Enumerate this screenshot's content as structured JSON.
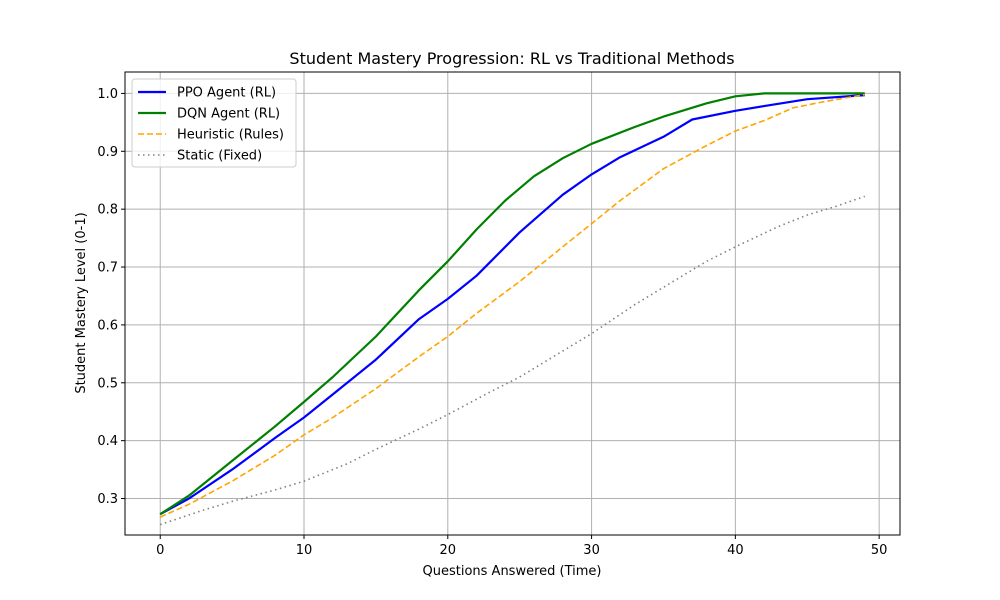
{
  "chart_data": {
    "type": "line",
    "title": "Student Mastery Progression: RL vs Traditional Methods",
    "xlabel": "Questions Answered (Time)",
    "ylabel": "Student Mastery Level (0-1)",
    "xlim": [
      -2.45,
      51.45
    ],
    "ylim": [
      0.237,
      1.037
    ],
    "xticks": [
      0,
      10,
      20,
      30,
      40,
      50
    ],
    "yticks": [
      0.3,
      0.4,
      0.5,
      0.6,
      0.7,
      0.8,
      0.9,
      1.0
    ],
    "xtick_labels": [
      "0",
      "10",
      "20",
      "30",
      "40",
      "50"
    ],
    "ytick_labels": [
      "0.3",
      "0.4",
      "0.5",
      "0.6",
      "0.7",
      "0.8",
      "0.9",
      "1.0"
    ],
    "grid": true,
    "legend_position": "top-left",
    "series": [
      {
        "name": "PPO Agent (RL)",
        "color": "#0000ff",
        "style": "solid",
        "x": [
          0,
          2,
          5,
          8,
          10,
          12,
          15,
          18,
          20,
          22,
          25,
          28,
          30,
          32,
          35,
          37,
          40,
          42,
          45,
          49
        ],
        "y": [
          0.273,
          0.3,
          0.35,
          0.405,
          0.44,
          0.48,
          0.54,
          0.61,
          0.645,
          0.685,
          0.76,
          0.825,
          0.86,
          0.89,
          0.925,
          0.955,
          0.97,
          0.978,
          0.99,
          0.997
        ]
      },
      {
        "name": "DQN Agent (RL)",
        "color": "#008000",
        "style": "solid",
        "x": [
          0,
          2,
          5,
          8,
          10,
          12,
          15,
          18,
          20,
          22,
          24,
          26,
          28,
          30,
          33,
          35,
          38,
          40,
          42,
          45,
          49
        ],
        "y": [
          0.273,
          0.305,
          0.365,
          0.425,
          0.467,
          0.51,
          0.58,
          0.66,
          0.71,
          0.765,
          0.815,
          0.857,
          0.888,
          0.913,
          0.942,
          0.96,
          0.983,
          0.995,
          1.0,
          1.0,
          1.0
        ]
      },
      {
        "name": "Heuristic (Rules)",
        "color": "#ffa500",
        "style": "dashed",
        "x": [
          0,
          2,
          5,
          8,
          10,
          12,
          15,
          18,
          20,
          22,
          25,
          28,
          30,
          32,
          35,
          38,
          40,
          42,
          44,
          46,
          49
        ],
        "y": [
          0.268,
          0.29,
          0.33,
          0.375,
          0.41,
          0.44,
          0.49,
          0.545,
          0.58,
          0.62,
          0.675,
          0.735,
          0.775,
          0.815,
          0.87,
          0.91,
          0.935,
          0.953,
          0.975,
          0.985,
          0.998
        ]
      },
      {
        "name": "Static (Fixed)",
        "color": "#808080",
        "style": "dotted",
        "x": [
          0,
          3,
          5,
          8,
          10,
          13,
          15,
          18,
          20,
          23,
          25,
          28,
          30,
          33,
          35,
          38,
          40,
          43,
          45,
          47,
          49
        ],
        "y": [
          0.255,
          0.28,
          0.295,
          0.315,
          0.33,
          0.36,
          0.385,
          0.42,
          0.445,
          0.485,
          0.51,
          0.555,
          0.585,
          0.635,
          0.665,
          0.71,
          0.735,
          0.77,
          0.79,
          0.805,
          0.822
        ]
      }
    ]
  }
}
